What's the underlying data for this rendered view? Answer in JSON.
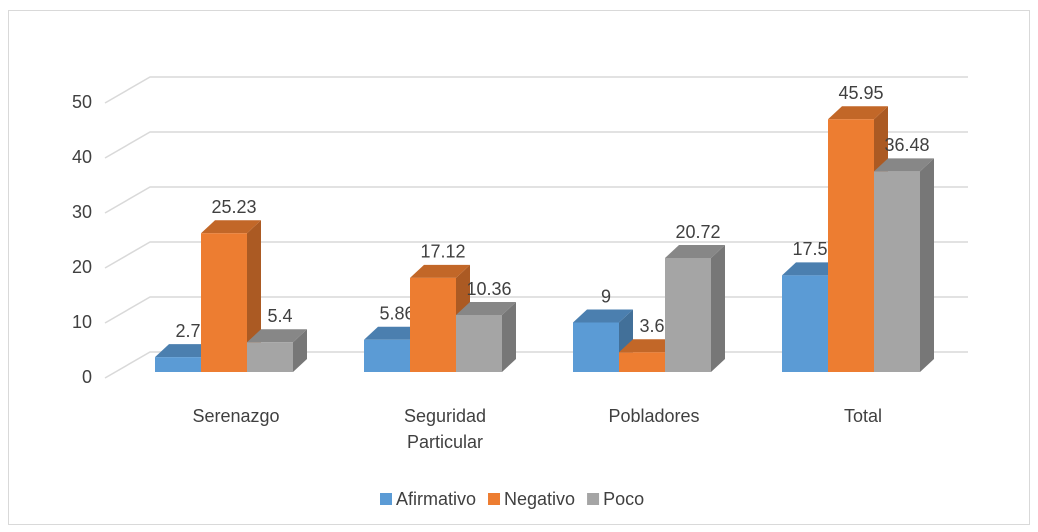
{
  "chart_data": {
    "type": "bar3d",
    "categories": [
      "Serenazgo",
      "Seguridad Particular",
      "Pobladores",
      "Total"
    ],
    "series": [
      {
        "name": "Afirmativo",
        "color": "#5b9bd5",
        "values": [
          2.7,
          5.86,
          9,
          17.56
        ]
      },
      {
        "name": "Negativo",
        "color": "#ed7d31",
        "values": [
          25.23,
          17.12,
          3.6,
          45.95
        ]
      },
      {
        "name": "Poco",
        "color": "#a5a5a5",
        "values": [
          5.4,
          10.36,
          20.72,
          36.48
        ]
      }
    ],
    "ylim": [
      0,
      50
    ],
    "yticks": [
      0,
      10,
      20,
      30,
      40,
      50
    ],
    "grid": true,
    "legend": "bottom"
  }
}
